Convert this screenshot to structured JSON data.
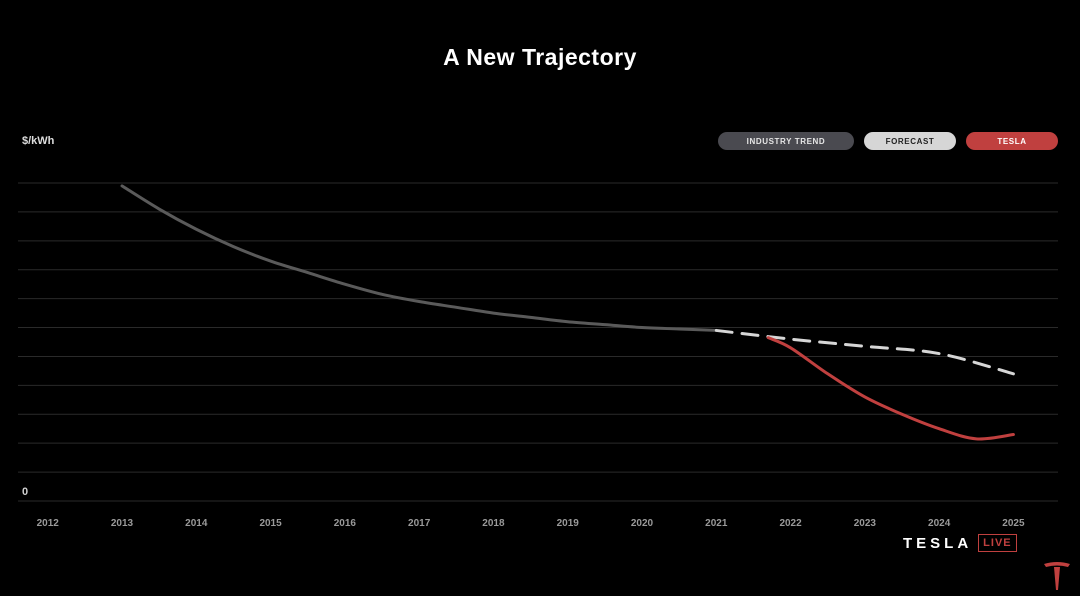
{
  "chart_data": {
    "type": "line",
    "title": "A New Trajectory",
    "ylabel": "$/kWh",
    "ytick_labels": [
      "0"
    ],
    "ylim": [
      0,
      11
    ],
    "xlim": [
      2011.6,
      2025.6
    ],
    "x_ticks": [
      2012,
      2013,
      2014,
      2015,
      2016,
      2017,
      2018,
      2019,
      2020,
      2021,
      2022,
      2023,
      2024,
      2025
    ],
    "grid": true,
    "legend_position": "top-right",
    "series": [
      {
        "name": "INDUSTRY TREND",
        "color": "#5a5a5a",
        "style": "solid",
        "x": [
          2013,
          2013.5,
          2014,
          2014.5,
          2015,
          2015.5,
          2016,
          2016.5,
          2017,
          2017.5,
          2018,
          2018.5,
          2019,
          2019.5,
          2020,
          2020.5,
          2021
        ],
        "y": [
          10.9,
          10.1,
          9.4,
          8.8,
          8.3,
          7.9,
          7.5,
          7.15,
          6.9,
          6.7,
          6.5,
          6.35,
          6.2,
          6.1,
          6.0,
          5.95,
          5.9
        ]
      },
      {
        "name": "FORECAST",
        "color": "#d6d6d6",
        "style": "dashed",
        "x": [
          2021,
          2022,
          2023,
          2024,
          2025
        ],
        "y": [
          5.9,
          5.6,
          5.35,
          5.1,
          4.4
        ]
      },
      {
        "name": "TESLA",
        "color": "#c0403f",
        "style": "solid",
        "x": [
          2021.7,
          2022,
          2022.5,
          2023,
          2023.5,
          2024,
          2024.5,
          2025
        ],
        "y": [
          5.65,
          5.3,
          4.4,
          3.6,
          3.0,
          2.5,
          2.15,
          2.3
        ]
      }
    ]
  },
  "brand": {
    "word": "TESLA",
    "live": "LIVE"
  },
  "colors": {
    "background": "#000000",
    "grid": "#2a2a2a",
    "tick": "#9a9a9a"
  },
  "icons": {
    "logo": "tesla-t-logo-icon"
  }
}
